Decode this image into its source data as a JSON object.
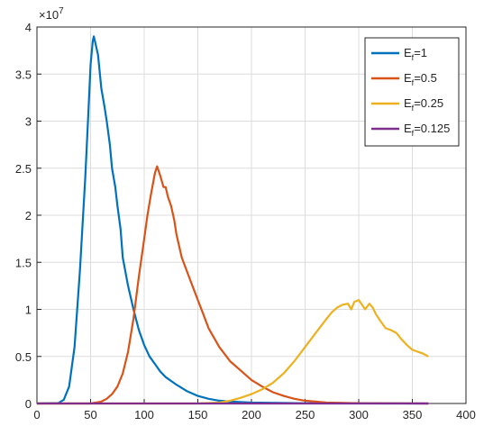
{
  "chart_data": {
    "type": "line",
    "title": "",
    "xlabel": "",
    "ylabel": "",
    "y_exponent_label": "×10^7",
    "y_exponent_base": "×10",
    "y_exponent_power": "7",
    "xlim": [
      0,
      400
    ],
    "ylim": [
      0,
      4
    ],
    "x_ticks": [
      0,
      50,
      100,
      150,
      200,
      250,
      300,
      350,
      400
    ],
    "y_ticks": [
      0,
      0.5,
      1,
      1.5,
      2,
      2.5,
      3,
      3.5,
      4
    ],
    "x_tick_labels": [
      "0",
      "50",
      "100",
      "150",
      "200",
      "250",
      "300",
      "350",
      "400"
    ],
    "y_tick_labels": [
      "0",
      "0.5",
      "1",
      "1.5",
      "2",
      "2.5",
      "3",
      "3.5",
      "4"
    ],
    "grid": true,
    "legend_position": "top-right",
    "series": [
      {
        "name": "E_f=1",
        "legend_base": "E",
        "legend_sub": "f",
        "legend_rest": "=1",
        "color": "#0072BD",
        "x": [
          0,
          20,
          25,
          30,
          35,
          40,
          45,
          48,
          50,
          52,
          53,
          55,
          57,
          60,
          63,
          65,
          68,
          70,
          73,
          75,
          78,
          80,
          85,
          90,
          95,
          100,
          105,
          110,
          115,
          120,
          130,
          140,
          150,
          160,
          170,
          180,
          200,
          250,
          300,
          365
        ],
        "y": [
          0,
          0.005,
          0.04,
          0.18,
          0.6,
          1.4,
          2.4,
          3.1,
          3.6,
          3.85,
          3.9,
          3.8,
          3.7,
          3.35,
          3.15,
          3.0,
          2.75,
          2.5,
          2.3,
          2.1,
          1.85,
          1.55,
          1.25,
          1.0,
          0.78,
          0.62,
          0.5,
          0.42,
          0.34,
          0.28,
          0.2,
          0.13,
          0.08,
          0.05,
          0.03,
          0.02,
          0.01,
          0.003,
          0.001,
          0.0
        ]
      },
      {
        "name": "E_f=0.5",
        "legend_base": "E",
        "legend_sub": "f",
        "legend_rest": "=0.5",
        "color": "#D95319",
        "x": [
          0,
          50,
          60,
          65,
          70,
          75,
          80,
          85,
          90,
          95,
          100,
          103,
          106,
          110,
          112,
          115,
          118,
          120,
          122,
          125,
          128,
          130,
          133,
          135,
          140,
          145,
          150,
          155,
          160,
          170,
          180,
          190,
          200,
          210,
          220,
          230,
          240,
          250,
          270,
          300,
          365
        ],
        "y": [
          0,
          0.0,
          0.02,
          0.05,
          0.1,
          0.18,
          0.32,
          0.55,
          0.9,
          1.35,
          1.75,
          2.0,
          2.2,
          2.45,
          2.52,
          2.42,
          2.3,
          2.3,
          2.2,
          2.1,
          1.95,
          1.8,
          1.65,
          1.55,
          1.4,
          1.25,
          1.1,
          0.95,
          0.8,
          0.6,
          0.45,
          0.35,
          0.25,
          0.18,
          0.12,
          0.08,
          0.05,
          0.03,
          0.01,
          0.003,
          0.0
        ]
      },
      {
        "name": "E_f=0.25",
        "legend_base": "E",
        "legend_sub": "f",
        "legend_rest": "=0.25",
        "color": "#EDB120",
        "x": [
          0,
          150,
          170,
          180,
          190,
          200,
          210,
          220,
          230,
          240,
          250,
          260,
          270,
          275,
          280,
          285,
          290,
          293,
          296,
          300,
          303,
          306,
          310,
          313,
          316,
          320,
          325,
          330,
          335,
          340,
          345,
          350,
          355,
          360,
          365
        ],
        "y": [
          0,
          0.0,
          0.01,
          0.03,
          0.06,
          0.1,
          0.15,
          0.22,
          0.32,
          0.45,
          0.6,
          0.75,
          0.9,
          0.97,
          1.02,
          1.05,
          1.06,
          1.0,
          1.08,
          1.1,
          1.05,
          1.0,
          1.06,
          1.02,
          0.95,
          0.88,
          0.8,
          0.78,
          0.75,
          0.68,
          0.62,
          0.57,
          0.55,
          0.53,
          0.5
        ]
      },
      {
        "name": "E_f=0.125",
        "legend_base": "E",
        "legend_sub": "f",
        "legend_rest": "=0.125",
        "color": "#7E2F8E",
        "x": [
          0,
          100,
          200,
          300,
          365
        ],
        "y": [
          0,
          0,
          0,
          0,
          0
        ]
      }
    ]
  }
}
